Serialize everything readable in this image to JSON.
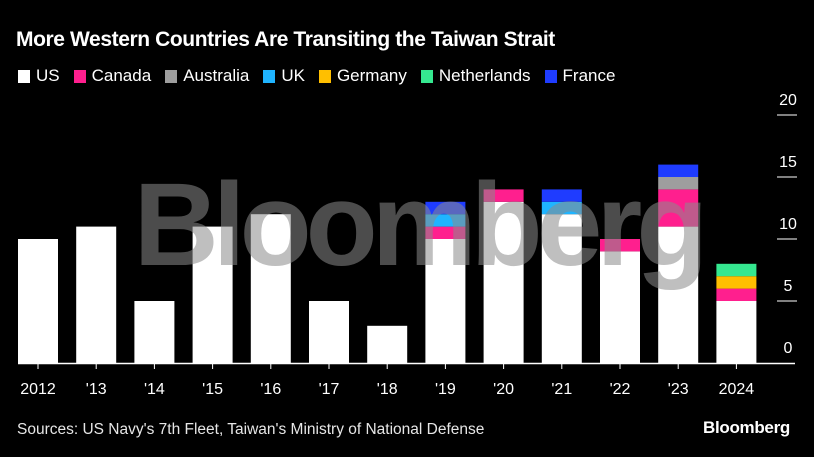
{
  "header": {
    "title": "More Western Countries Are Transiting the Taiwan Strait"
  },
  "footer": {
    "source": "Sources: US Navy's 7th Fleet, Taiwan's Ministry of National Defense",
    "brand": "Bloomberg"
  },
  "watermark": "Bloomberg",
  "chart_data": {
    "type": "bar",
    "stacked": true,
    "title": "More Western Countries Are Transiting the Taiwan Strait",
    "xlabel": "",
    "ylabel": "",
    "ylim": [
      0,
      20
    ],
    "yticks": [
      "0",
      "5",
      "10",
      "15",
      "20"
    ],
    "y_axis_position": "right",
    "legend_position": "top-left",
    "grid": false,
    "categories": [
      "2012",
      "'13",
      "'14",
      "'15",
      "'16",
      "'17",
      "'18",
      "'19",
      "'20",
      "'21",
      "'22",
      "'23",
      "2024"
    ],
    "series": [
      {
        "name": "US",
        "color": "#ffffff",
        "values": [
          10,
          11,
          5,
          11,
          12,
          5,
          3,
          10,
          13,
          12,
          9,
          11,
          5
        ]
      },
      {
        "name": "Canada",
        "color": "#ff1f8e",
        "values": [
          0,
          0,
          0,
          0,
          0,
          0,
          0,
          1,
          1,
          0,
          1,
          3,
          1
        ]
      },
      {
        "name": "Australia",
        "color": "#9e9e9e",
        "values": [
          0,
          0,
          0,
          0,
          0,
          0,
          0,
          0,
          0,
          0,
          0,
          1,
          0
        ]
      },
      {
        "name": "UK",
        "color": "#1fb4ff",
        "values": [
          0,
          0,
          0,
          0,
          0,
          0,
          0,
          1,
          0,
          1,
          0,
          0,
          0
        ]
      },
      {
        "name": "Germany",
        "color": "#ffbf00",
        "values": [
          0,
          0,
          0,
          0,
          0,
          0,
          0,
          0,
          0,
          0,
          0,
          0,
          1
        ]
      },
      {
        "name": "Netherlands",
        "color": "#35e890",
        "values": [
          0,
          0,
          0,
          0,
          0,
          0,
          0,
          0,
          0,
          0,
          0,
          0,
          1
        ]
      },
      {
        "name": "France",
        "color": "#1f3cff",
        "values": [
          0,
          0,
          0,
          0,
          0,
          0,
          0,
          1,
          0,
          1,
          0,
          1,
          0
        ]
      }
    ]
  }
}
